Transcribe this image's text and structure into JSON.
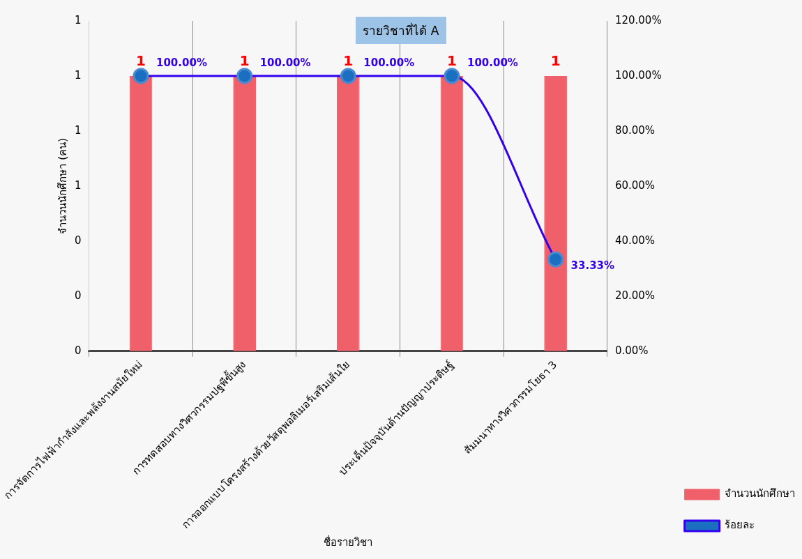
{
  "chart_data": {
    "type": "bar",
    "title": "รายวิชาที่ได้  A",
    "xlabel": "ชื่อรายวิชา",
    "ylabel": "จำนวนนักศึกษา (คน)",
    "categories": [
      "การจัดการไฟฟ้ากำลังและพลังงานสมัยใหม่",
      "การทดสอบทางวิศวกรรมปฐพีขั้นสูง",
      "การออกแบบโครงสร้างด้วยวัสดุพอลิเมอร์เสริมเส้นใย",
      "ประเด็นปัจจุบันด้านปัญญาประดิษฐ์",
      "สัมมนาทางวิศวกรรมโยธา 3"
    ],
    "series": [
      {
        "name": "จำนวนนักศึกษา",
        "color": "#f0606a",
        "values": [
          1,
          1,
          1,
          1,
          1
        ],
        "value_labels": [
          "1",
          "1",
          "1",
          "1",
          "1"
        ]
      },
      {
        "name": "ร้อยละ",
        "type": "line",
        "axis": "y2",
        "color": "#3300ee",
        "values": [
          100,
          100,
          100,
          100,
          33.33
        ],
        "value_labels": [
          "100.00%",
          "100.00%",
          "100.00%",
          "100.00%",
          "33.33%"
        ]
      }
    ],
    "ylim": [
      0,
      1.2
    ],
    "yticks": [
      {
        "value": 0,
        "label": "0"
      },
      {
        "value": 0.2,
        "label": "0"
      },
      {
        "value": 0.4,
        "label": "0"
      },
      {
        "value": 0.6,
        "label": "1"
      },
      {
        "value": 0.8,
        "label": "1"
      },
      {
        "value": 1,
        "label": "1"
      },
      {
        "value": 1.2,
        "label": "1"
      }
    ],
    "y2lim": [
      0,
      120
    ],
    "y2ticks": [
      {
        "value": 0,
        "label": "0.00%"
      },
      {
        "value": 20,
        "label": "20.00%"
      },
      {
        "value": 40,
        "label": "40.00%"
      },
      {
        "value": 60,
        "label": "60.00%"
      },
      {
        "value": 80,
        "label": "80.00%"
      },
      {
        "value": 100,
        "label": "100.00%"
      },
      {
        "value": 120,
        "label": "120.00%"
      }
    ],
    "grid": "x",
    "legend": "right",
    "marker": "circle"
  }
}
